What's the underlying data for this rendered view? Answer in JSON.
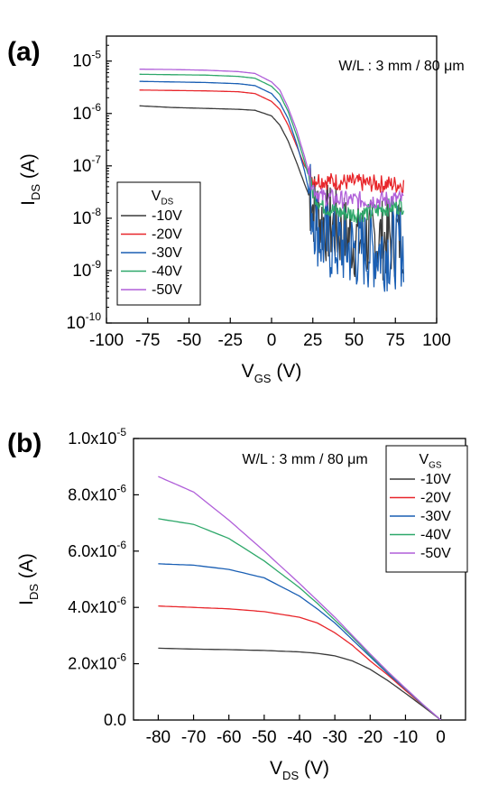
{
  "chart_data": [
    {
      "panel_label": "(a)",
      "type": "line",
      "annotation": "W/L : 3 mm / 80 μm",
      "xlabel": {
        "main": "V",
        "sub": "GS",
        "unit": " (V)"
      },
      "ylabel": {
        "main": "I",
        "sub": "DS",
        "unit": " (A)"
      },
      "xlim": [
        -100,
        100
      ],
      "xticks": [
        "-100",
        "-75",
        "-50",
        "-25",
        "0",
        "25",
        "50",
        "75",
        "100"
      ],
      "y_scale": "log",
      "ylim": [
        1e-10,
        3e-05
      ],
      "yticks": [
        {
          "base": "10",
          "exp": "-10"
        },
        {
          "base": "10",
          "exp": "-9"
        },
        {
          "base": "10",
          "exp": "-8"
        },
        {
          "base": "10",
          "exp": "-7"
        },
        {
          "base": "10",
          "exp": "-6"
        },
        {
          "base": "10",
          "exp": "-5"
        }
      ],
      "legend_title": {
        "main": "V",
        "sub": "DS"
      },
      "legend_position": "lower-left",
      "series": [
        {
          "name": "-10V",
          "color": "#3a3a3a",
          "x": [
            -80,
            -60,
            -40,
            -20,
            -10,
            0,
            5,
            10,
            15,
            20,
            25,
            30,
            40,
            50,
            60,
            70,
            80
          ],
          "y": [
            1.4e-06,
            1.3e-06,
            1.25e-06,
            1.2e-06,
            1.15e-06,
            9e-07,
            6e-07,
            3e-07,
            1.2e-07,
            4.5e-08,
            1.8e-08,
            9e-09,
            6e-09,
            4e-09,
            4e-09,
            4e-09,
            5e-09
          ]
        },
        {
          "name": "-20V",
          "color": "#e8262b",
          "x": [
            -80,
            -60,
            -40,
            -20,
            -10,
            0,
            5,
            10,
            15,
            20,
            25,
            30,
            40,
            50,
            60,
            70,
            80
          ],
          "y": [
            2.8e-06,
            2.75e-06,
            2.7e-06,
            2.6e-06,
            2.4e-06,
            1.7e-06,
            1.2e-06,
            6e-07,
            2.5e-07,
            1e-07,
            5.8e-08,
            5.3e-08,
            5e-08,
            4.8e-08,
            4.6e-08,
            4.5e-08,
            4.4e-08
          ]
        },
        {
          "name": "-30V",
          "color": "#1a5fb4",
          "x": [
            -80,
            -60,
            -40,
            -20,
            -10,
            0,
            5,
            10,
            15,
            20,
            25,
            30,
            40,
            50,
            60,
            70,
            80
          ],
          "y": [
            4.1e-06,
            4e-06,
            3.9e-06,
            3.7e-06,
            3.4e-06,
            2.4e-06,
            1.6e-06,
            8e-07,
            2.8e-07,
            8e-08,
            1.5e-08,
            4e-09,
            3e-09,
            2.5e-09,
            2.5e-09,
            2.5e-09,
            3e-09
          ]
        },
        {
          "name": "-40V",
          "color": "#2ea86a",
          "x": [
            -80,
            -60,
            -40,
            -20,
            -10,
            0,
            5,
            10,
            15,
            20,
            25,
            30,
            40,
            50,
            60,
            70,
            80
          ],
          "y": [
            5.6e-06,
            5.5e-06,
            5.4e-06,
            5.1e-06,
            4.7e-06,
            3.3e-06,
            2.3e-06,
            1.1e-06,
            4e-07,
            1.2e-07,
            3.2e-08,
            1.8e-08,
            1.3e-08,
            1.2e-08,
            1.3e-08,
            1.6e-08,
            1.8e-08
          ]
        },
        {
          "name": "-50V",
          "color": "#b05fd9",
          "x": [
            -80,
            -60,
            -40,
            -20,
            -10,
            0,
            5,
            10,
            15,
            20,
            25,
            30,
            40,
            50,
            60,
            70,
            80
          ],
          "y": [
            7e-06,
            6.9e-06,
            6.7e-06,
            6.3e-06,
            5.8e-06,
            4e-06,
            2.8e-06,
            1.3e-06,
            5e-07,
            1.5e-07,
            4e-08,
            2.6e-08,
            2.3e-08,
            2.2e-08,
            2.2e-08,
            2.3e-08,
            2.3e-08
          ]
        }
      ]
    },
    {
      "panel_label": "(b)",
      "type": "line",
      "annotation": "W/L : 3 mm / 80 μm",
      "xlabel": {
        "main": "V",
        "sub": "DS",
        "unit": " (V)"
      },
      "ylabel": {
        "main": "I",
        "sub": "DS",
        "unit": " (A)"
      },
      "xlim": [
        -87,
        7
      ],
      "xticks": [
        "-80",
        "-70",
        "-60",
        "-50",
        "-40",
        "-30",
        "-20",
        "-10",
        "0"
      ],
      "ylim": [
        0,
        1e-05
      ],
      "yticks": [
        "0.0",
        "2.0x10",
        "4.0x10",
        "6.0x10",
        "8.0x10",
        "1.0x10"
      ],
      "ytick_exps": [
        "",
        "-6",
        "-6",
        "-6",
        "-6",
        "-5"
      ],
      "legend_title": {
        "main": "V",
        "sub": "GS"
      },
      "legend_position": "top-right",
      "series": [
        {
          "name": "-10V",
          "color": "#3a3a3a",
          "x": [
            -80,
            -70,
            -60,
            -50,
            -40,
            -35,
            -30,
            -25,
            -20,
            -15,
            -10,
            -5,
            0
          ],
          "y": [
            2.55e-06,
            2.52e-06,
            2.5e-06,
            2.47e-06,
            2.42e-06,
            2.37e-06,
            2.28e-06,
            2.1e-06,
            1.8e-06,
            1.4e-06,
            9.5e-07,
            4.8e-07,
            0
          ]
        },
        {
          "name": "-20V",
          "color": "#e8262b",
          "x": [
            -80,
            -70,
            -60,
            -50,
            -40,
            -35,
            -30,
            -25,
            -20,
            -15,
            -10,
            -5,
            0
          ],
          "y": [
            4.05e-06,
            4e-06,
            3.95e-06,
            3.85e-06,
            3.65e-06,
            3.45e-06,
            3.1e-06,
            2.65e-06,
            2.1e-06,
            1.6e-06,
            1.05e-06,
            5.2e-07,
            0
          ]
        },
        {
          "name": "-30V",
          "color": "#1a5fb4",
          "x": [
            -80,
            -70,
            -60,
            -50,
            -40,
            -35,
            -30,
            -25,
            -20,
            -15,
            -10,
            -5,
            0
          ],
          "y": [
            5.55e-06,
            5.5e-06,
            5.35e-06,
            5.05e-06,
            4.4e-06,
            3.95e-06,
            3.45e-06,
            2.85e-06,
            2.25e-06,
            1.65e-06,
            1.1e-06,
            5.3e-07,
            0
          ]
        },
        {
          "name": "-40V",
          "color": "#2ea86a",
          "x": [
            -80,
            -70,
            -60,
            -50,
            -40,
            -35,
            -30,
            -25,
            -20,
            -15,
            -10,
            -5,
            0
          ],
          "y": [
            7.15e-06,
            6.95e-06,
            6.45e-06,
            5.65e-06,
            4.7e-06,
            4.15e-06,
            3.55e-06,
            2.95e-06,
            2.3e-06,
            1.7e-06,
            1.12e-06,
            5.4e-07,
            0
          ]
        },
        {
          "name": "-50V",
          "color": "#b05fd9",
          "x": [
            -80,
            -70,
            -60,
            -50,
            -40,
            -35,
            -30,
            -25,
            -20,
            -15,
            -10,
            -5,
            0
          ],
          "y": [
            8.65e-06,
            8.1e-06,
            7.1e-06,
            6e-06,
            4.85e-06,
            4.25e-06,
            3.65e-06,
            3e-06,
            2.35e-06,
            1.72e-06,
            1.13e-06,
            5.5e-07,
            0
          ]
        }
      ]
    }
  ]
}
